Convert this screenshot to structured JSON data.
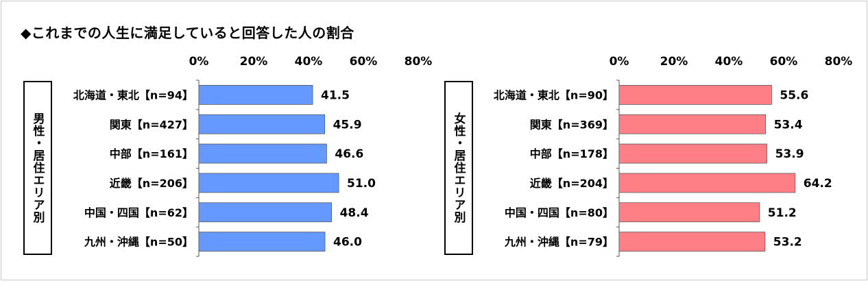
{
  "title": "◆これまでの人生に満足していると回答した人の割合",
  "colors": {
    "male": "#6699ff",
    "female": "#ff7f87"
  },
  "chart_data": [
    {
      "type": "bar",
      "orientation": "horizontal",
      "group_label": "男性・居住エリア別",
      "categories": [
        "北海道・東北【n=94】",
        "関東【n=427】",
        "中部【n=161】",
        "近畿【n=206】",
        "中国・四国【n=62】",
        "九州・沖縄【n=50】"
      ],
      "values": [
        41.5,
        45.9,
        46.6,
        51.0,
        48.4,
        46.0
      ],
      "value_labels": [
        "41.5",
        "45.9",
        "46.6",
        "51.0",
        "48.4",
        "46.0"
      ],
      "xlim": [
        0,
        80
      ],
      "xticks": [
        "0%",
        "20%",
        "40%",
        "60%",
        "80%"
      ],
      "color": "#6699ff",
      "grid": false
    },
    {
      "type": "bar",
      "orientation": "horizontal",
      "group_label": "女性・居住エリア別",
      "categories": [
        "北海道・東北【n=90】",
        "関東【n=369】",
        "中部【n=178】",
        "近畿【n=204】",
        "中国・四国【n=80】",
        "九州・沖縄【n=79】"
      ],
      "values": [
        55.6,
        53.4,
        53.9,
        64.2,
        51.2,
        53.2
      ],
      "value_labels": [
        "55.6",
        "53.4",
        "53.9",
        "64.2",
        "51.2",
        "53.2"
      ],
      "xlim": [
        0,
        80
      ],
      "xticks": [
        "0%",
        "20%",
        "40%",
        "60%",
        "80%"
      ],
      "color": "#ff7f87",
      "grid": false
    }
  ]
}
